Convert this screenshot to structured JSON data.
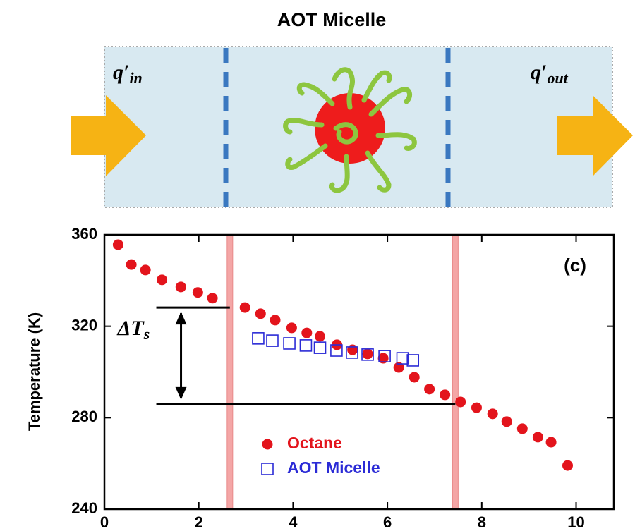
{
  "diagram": {
    "title": "AOT Micelle",
    "inlet_label": {
      "symbol": "q′",
      "subscript": "in"
    },
    "outlet_label": {
      "symbol": "q′",
      "subscript": "out"
    }
  },
  "chart_data": {
    "type": "scatter",
    "ylabel": "Temperature (K)",
    "panel_label": "(c)",
    "xlim": [
      0,
      10.8
    ],
    "ylim": [
      240,
      360
    ],
    "xticks": [
      0,
      2,
      4,
      6,
      8,
      10
    ],
    "yticks": [
      240,
      280,
      320,
      360
    ],
    "legend": "lower center",
    "series": [
      {
        "name": "Octane",
        "color": "#e3141c",
        "marker": "circle",
        "x": [
          0.29,
          0.57,
          0.87,
          1.22,
          1.62,
          1.98,
          2.29,
          2.98,
          3.31,
          3.62,
          3.97,
          4.29,
          4.57,
          4.93,
          5.26,
          5.58,
          5.91,
          6.24,
          6.57,
          6.89,
          7.22,
          7.55,
          7.89,
          8.23,
          8.53,
          8.86,
          9.19,
          9.47,
          9.82
        ],
        "values": [
          355.7,
          347.0,
          344.6,
          340.3,
          337.2,
          334.8,
          332.3,
          328.2,
          325.5,
          322.7,
          319.3,
          317.1,
          315.6,
          311.9,
          309.7,
          307.9,
          306.0,
          302.0,
          297.7,
          292.5,
          290.0,
          286.9,
          284.4,
          281.7,
          278.3,
          275.2,
          271.5,
          269.3,
          259.1
        ]
      },
      {
        "name": "AOT Micelle",
        "color": "#2b2bd6",
        "marker": "square",
        "x": [
          3.26,
          3.56,
          3.92,
          4.27,
          4.57,
          4.92,
          5.25,
          5.58,
          5.94,
          6.32,
          6.54
        ],
        "values": [
          314.7,
          313.7,
          312.5,
          311.6,
          310.6,
          309.4,
          308.5,
          307.6,
          306.9,
          306.0,
          305.1
        ]
      }
    ],
    "boundary_lines": {
      "color": "#f4a6a6",
      "x": [
        2.66,
        7.44
      ]
    },
    "delta_annotation": {
      "symbol": "ΔT",
      "subscript": "s",
      "upper": 328.2,
      "lower": 286.0,
      "x_start": 1.1
    }
  }
}
